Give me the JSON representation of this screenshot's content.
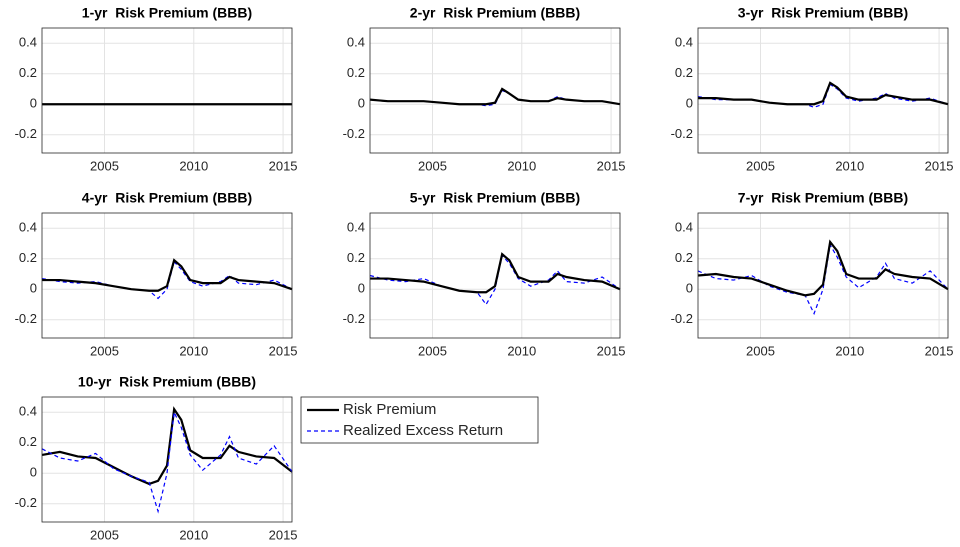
{
  "chart_data": [
    {
      "type": "line",
      "title": "1-yr  Risk Premium (BBB)",
      "xlim": [
        2001.5,
        2015.5
      ],
      "xticks": [
        2005,
        2010,
        2015
      ],
      "ylim": [
        -0.32,
        0.5
      ],
      "yticks": [
        -0.2,
        0,
        0.2,
        0.4
      ],
      "grid": true,
      "x": [
        2001.5,
        2002.5,
        2003.5,
        2004.5,
        2005.5,
        2006.5,
        2007.5,
        2008,
        2008.5,
        2008.9,
        2009.3,
        2009.8,
        2010.5,
        2011.5,
        2012,
        2012.5,
        2013.5,
        2014.5,
        2015.5
      ],
      "series": [
        {
          "color": "#000000",
          "dashed": false,
          "values": [
            0,
            0,
            0,
            0,
            0,
            0,
            0,
            0,
            0,
            0,
            0,
            0,
            0,
            0,
            0,
            0,
            0,
            0,
            0
          ]
        }
      ]
    },
    {
      "type": "line",
      "title": "2-yr  Risk Premium (BBB)",
      "xlim": [
        2001.5,
        2015.5
      ],
      "xticks": [
        2005,
        2010,
        2015
      ],
      "ylim": [
        -0.32,
        0.5
      ],
      "yticks": [
        -0.2,
        0,
        0.2,
        0.4
      ],
      "grid": true,
      "x": [
        2001.5,
        2002.5,
        2003.5,
        2004.5,
        2005.5,
        2006.5,
        2007.5,
        2008,
        2008.5,
        2008.9,
        2009.3,
        2009.8,
        2010.5,
        2011.5,
        2012,
        2012.5,
        2013.5,
        2014.5,
        2015.5
      ],
      "series": [
        {
          "color": "#0000ff",
          "dashed": true,
          "values": [
            0.03,
            0.02,
            0.02,
            0.02,
            0.01,
            0,
            0,
            -0.01,
            0,
            0.09,
            0.07,
            0.03,
            0.02,
            0.02,
            0.05,
            0.03,
            0.02,
            0.02,
            0
          ]
        },
        {
          "color": "#000000",
          "dashed": false,
          "values": [
            0.03,
            0.02,
            0.02,
            0.02,
            0.01,
            0,
            0,
            0,
            0.01,
            0.1,
            0.07,
            0.03,
            0.02,
            0.02,
            0.04,
            0.03,
            0.02,
            0.02,
            0
          ]
        }
      ]
    },
    {
      "type": "line",
      "title": "3-yr  Risk Premium (BBB)",
      "xlim": [
        2001.5,
        2015.5
      ],
      "xticks": [
        2005,
        2010,
        2015
      ],
      "ylim": [
        -0.32,
        0.5
      ],
      "yticks": [
        -0.2,
        0,
        0.2,
        0.4
      ],
      "grid": true,
      "x": [
        2001.5,
        2002.5,
        2003.5,
        2004.5,
        2005.5,
        2006.5,
        2007.5,
        2008,
        2008.5,
        2008.9,
        2009.3,
        2009.8,
        2010.5,
        2011.5,
        2012,
        2012.5,
        2013.5,
        2014.5,
        2015.5
      ],
      "series": [
        {
          "color": "#0000ff",
          "dashed": true,
          "values": [
            0.05,
            0.03,
            0.03,
            0.03,
            0.01,
            0,
            0,
            -0.02,
            0,
            0.13,
            0.1,
            0.04,
            0.02,
            0.04,
            0.07,
            0.04,
            0.02,
            0.04,
            0
          ]
        },
        {
          "color": "#000000",
          "dashed": false,
          "values": [
            0.04,
            0.04,
            0.03,
            0.03,
            0.01,
            0,
            0,
            0,
            0.02,
            0.14,
            0.11,
            0.05,
            0.03,
            0.03,
            0.06,
            0.05,
            0.03,
            0.03,
            0
          ]
        }
      ]
    },
    {
      "type": "line",
      "title": "4-yr  Risk Premium (BBB)",
      "xlim": [
        2001.5,
        2015.5
      ],
      "xticks": [
        2005,
        2010,
        2015
      ],
      "ylim": [
        -0.32,
        0.5
      ],
      "yticks": [
        -0.2,
        0,
        0.2,
        0.4
      ],
      "grid": true,
      "x": [
        2001.5,
        2002.5,
        2003.5,
        2004.5,
        2005.5,
        2006.5,
        2007.5,
        2008,
        2008.5,
        2008.9,
        2009.3,
        2009.8,
        2010.5,
        2011.5,
        2012,
        2012.5,
        2013.5,
        2014.5,
        2015.5
      ],
      "series": [
        {
          "color": "#0000ff",
          "dashed": true,
          "values": [
            0.07,
            0.05,
            0.04,
            0.05,
            0.02,
            0,
            -0.01,
            -0.06,
            0,
            0.18,
            0.13,
            0.05,
            0.02,
            0.05,
            0.09,
            0.04,
            0.03,
            0.06,
            0
          ]
        },
        {
          "color": "#000000",
          "dashed": false,
          "values": [
            0.06,
            0.06,
            0.05,
            0.04,
            0.02,
            0,
            -0.01,
            -0.01,
            0.02,
            0.19,
            0.15,
            0.06,
            0.04,
            0.04,
            0.08,
            0.06,
            0.05,
            0.04,
            0
          ]
        }
      ]
    },
    {
      "type": "line",
      "title": "5-yr  Risk Premium (BBB)",
      "xlim": [
        2001.5,
        2015.5
      ],
      "xticks": [
        2005,
        2010,
        2015
      ],
      "ylim": [
        -0.32,
        0.5
      ],
      "yticks": [
        -0.2,
        0,
        0.2,
        0.4
      ],
      "grid": true,
      "x": [
        2001.5,
        2002.5,
        2003.5,
        2004.5,
        2005.5,
        2006.5,
        2007.5,
        2008,
        2008.5,
        2008.9,
        2009.3,
        2009.8,
        2010.5,
        2011.5,
        2012,
        2012.5,
        2013.5,
        2014.5,
        2015.5
      ],
      "series": [
        {
          "color": "#0000ff",
          "dashed": true,
          "values": [
            0.09,
            0.06,
            0.05,
            0.07,
            0.02,
            -0.01,
            -0.02,
            -0.1,
            0,
            0.22,
            0.17,
            0.07,
            0.02,
            0.06,
            0.12,
            0.05,
            0.04,
            0.08,
            0
          ]
        },
        {
          "color": "#000000",
          "dashed": false,
          "values": [
            0.07,
            0.07,
            0.06,
            0.05,
            0.02,
            -0.01,
            -0.02,
            -0.02,
            0.02,
            0.23,
            0.19,
            0.08,
            0.05,
            0.05,
            0.1,
            0.08,
            0.06,
            0.05,
            0
          ]
        }
      ]
    },
    {
      "type": "line",
      "title": "7-yr  Risk Premium (BBB)",
      "xlim": [
        2001.5,
        2015.5
      ],
      "xticks": [
        2005,
        2010,
        2015
      ],
      "ylim": [
        -0.32,
        0.5
      ],
      "yticks": [
        -0.2,
        0,
        0.2,
        0.4
      ],
      "grid": true,
      "x": [
        2001.5,
        2002.5,
        2003.5,
        2004.5,
        2005.5,
        2006.5,
        2007.5,
        2008,
        2008.5,
        2008.9,
        2009.3,
        2009.8,
        2010.5,
        2011.5,
        2012,
        2012.5,
        2013.5,
        2014.5,
        2015.5
      ],
      "series": [
        {
          "color": "#0000ff",
          "dashed": true,
          "values": [
            0.12,
            0.07,
            0.06,
            0.09,
            0.02,
            -0.02,
            -0.04,
            -0.16,
            0,
            0.29,
            0.21,
            0.08,
            0.01,
            0.08,
            0.17,
            0.07,
            0.04,
            0.12,
            0
          ]
        },
        {
          "color": "#000000",
          "dashed": false,
          "values": [
            0.09,
            0.1,
            0.08,
            0.07,
            0.03,
            -0.01,
            -0.04,
            -0.03,
            0.03,
            0.31,
            0.25,
            0.1,
            0.07,
            0.07,
            0.13,
            0.1,
            0.08,
            0.07,
            0
          ]
        }
      ]
    },
    {
      "type": "line",
      "title": "10-yr  Risk Premium (BBB)",
      "xlim": [
        2001.5,
        2015.5
      ],
      "xticks": [
        2005,
        2010,
        2015
      ],
      "ylim": [
        -0.32,
        0.5
      ],
      "yticks": [
        -0.2,
        0,
        0.2,
        0.4
      ],
      "grid": true,
      "x": [
        2001.5,
        2002.5,
        2003.5,
        2004.5,
        2005.5,
        2006.5,
        2007.5,
        2008,
        2008.5,
        2008.9,
        2009.3,
        2009.8,
        2010.5,
        2011.5,
        2012,
        2012.5,
        2013.5,
        2014.5,
        2015.5
      ],
      "series": [
        {
          "name": "Risk Premium",
          "color": "#000000",
          "dashed": false,
          "values": [
            0.12,
            0.14,
            0.11,
            0.1,
            0.04,
            -0.02,
            -0.07,
            -0.05,
            0.05,
            0.42,
            0.35,
            0.15,
            0.1,
            0.1,
            0.18,
            0.14,
            0.11,
            0.1,
            0.01
          ]
        },
        {
          "name": "Realized Excess Return",
          "color": "#0000ff",
          "dashed": true,
          "values": [
            0.16,
            0.1,
            0.08,
            0.13,
            0.03,
            -0.02,
            -0.06,
            -0.25,
            0,
            0.4,
            0.3,
            0.12,
            0.02,
            0.12,
            0.24,
            0.1,
            0.06,
            0.18,
            0.01
          ]
        }
      ]
    }
  ]
}
